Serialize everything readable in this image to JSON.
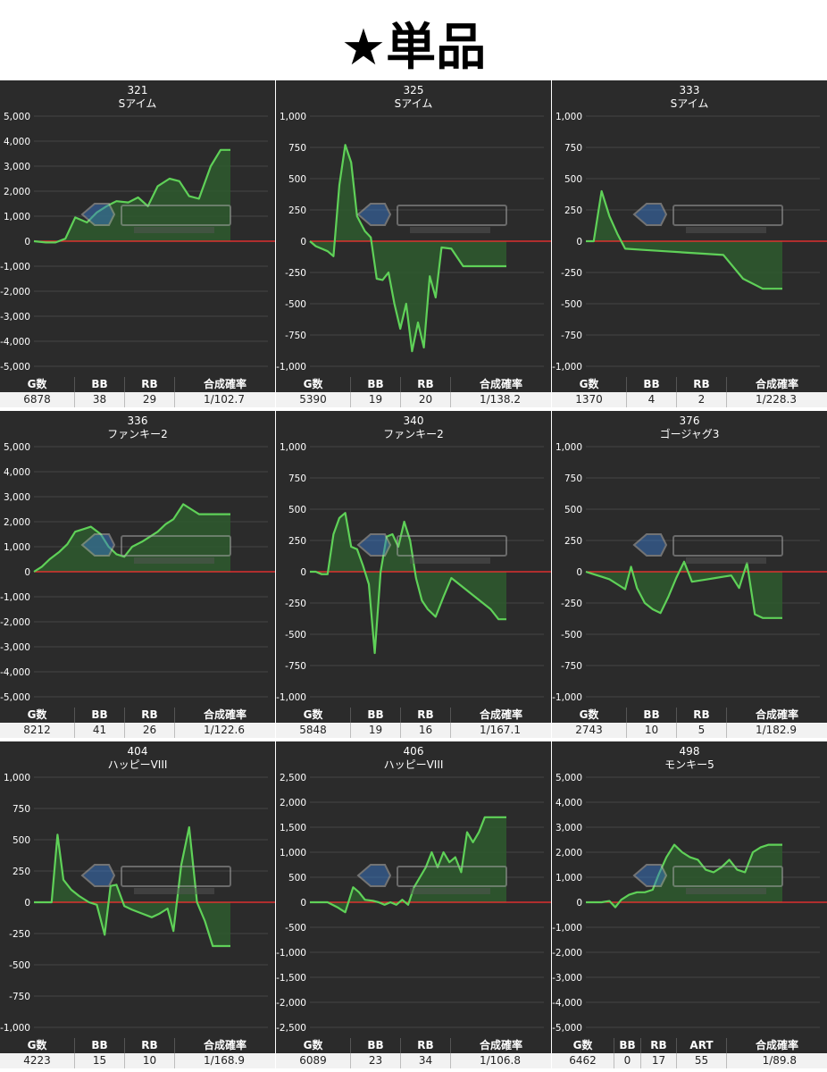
{
  "page_title": "★単品",
  "colors": {
    "panel_bg": "#2b2b2b",
    "line": "#5fd158",
    "fill": "#2e5a2e",
    "zero_line": "#ff3030",
    "grid": "#444444"
  },
  "chart_data": [
    {
      "type": "area",
      "title": "321",
      "subtitle": "Sアイム",
      "ylim": [
        -5000,
        5000
      ],
      "yticks": [
        5000,
        4000,
        3000,
        2000,
        1000,
        0,
        -1000,
        -2000,
        -3000,
        -4000,
        -5000
      ],
      "yticklabels": [
        "5,000",
        "4,000",
        "3,000",
        "2,000",
        "1,000",
        "0",
        "-1,000",
        "-2,000",
        "-3,000",
        "-4,000",
        "-5,000"
      ],
      "x": [
        0,
        6,
        11,
        16,
        21,
        27,
        32,
        37,
        42,
        48,
        53,
        58,
        63,
        69,
        74,
        79,
        84,
        90,
        95,
        100
      ],
      "y": [
        0,
        -50,
        -50,
        100,
        950,
        750,
        1150,
        1400,
        1600,
        1550,
        1750,
        1400,
        2200,
        2500,
        2400,
        1800,
        1700,
        3000,
        3650,
        3650
      ],
      "stats": {
        "headers": [
          "G数",
          "BB",
          "RB",
          "合成確率"
        ],
        "values": [
          "6878",
          "38",
          "29",
          "1/102.7"
        ]
      }
    },
    {
      "type": "area",
      "title": "325",
      "subtitle": "Sアイム",
      "ylim": [
        -1000,
        1000
      ],
      "yticks": [
        1000,
        750,
        500,
        250,
        0,
        -250,
        -500,
        -750,
        -1000
      ],
      "yticklabels": [
        "1,000",
        "750",
        "500",
        "250",
        "0",
        "-250",
        "-500",
        "-750",
        "-1,000"
      ],
      "x": [
        0,
        3,
        6,
        9,
        12,
        15,
        18,
        21,
        24,
        28,
        31,
        34,
        37,
        40,
        43,
        46,
        49,
        52,
        55,
        58,
        61,
        64,
        67,
        72,
        78,
        86,
        100
      ],
      "y": [
        0,
        -40,
        -60,
        -80,
        -120,
        450,
        770,
        630,
        200,
        80,
        30,
        -300,
        -310,
        -250,
        -500,
        -700,
        -500,
        -880,
        -650,
        -850,
        -280,
        -450,
        -50,
        -60,
        -200,
        -200,
        -200
      ],
      "stats": {
        "headers": [
          "G数",
          "BB",
          "RB",
          "合成確率"
        ],
        "values": [
          "5390",
          "19",
          "20",
          "1/138.2"
        ]
      }
    },
    {
      "type": "area",
      "title": "333",
      "subtitle": "Sアイム",
      "ylim": [
        -1000,
        1000
      ],
      "yticks": [
        1000,
        750,
        500,
        250,
        0,
        -250,
        -500,
        -750,
        -1000
      ],
      "yticklabels": [
        "1,000",
        "750",
        "500",
        "250",
        "0",
        "-250",
        "-500",
        "-750",
        "-1,000"
      ],
      "x": [
        0,
        4,
        8,
        12,
        16,
        20,
        30,
        40,
        50,
        60,
        70,
        80,
        90,
        100
      ],
      "y": [
        0,
        0,
        400,
        200,
        60,
        -60,
        -70,
        -80,
        -90,
        -100,
        -110,
        -300,
        -380,
        -380
      ],
      "stats": {
        "headers": [
          "G数",
          "BB",
          "RB",
          "合成確率"
        ],
        "values": [
          "1370",
          "4",
          "2",
          "1/228.3"
        ]
      }
    },
    {
      "type": "area",
      "title": "336",
      "subtitle": "ファンキー2",
      "ylim": [
        -5000,
        5000
      ],
      "yticks": [
        5000,
        4000,
        3000,
        2000,
        1000,
        0,
        -1000,
        -2000,
        -3000,
        -4000,
        -5000
      ],
      "yticklabels": [
        "5,000",
        "4,000",
        "3,000",
        "2,000",
        "1,000",
        "0",
        "-1,000",
        "-2,000",
        "-3,000",
        "-4,000",
        "-5,000"
      ],
      "x": [
        0,
        4,
        8,
        13,
        17,
        21,
        25,
        29,
        34,
        38,
        42,
        46,
        50,
        55,
        59,
        63,
        67,
        71,
        76,
        80,
        84,
        88,
        92,
        96,
        100
      ],
      "y": [
        0,
        200,
        500,
        800,
        1100,
        1600,
        1700,
        1800,
        1500,
        1000,
        700,
        600,
        1000,
        1200,
        1400,
        1600,
        1900,
        2100,
        2700,
        2500,
        2300,
        2300,
        2300,
        2300,
        2300
      ],
      "stats": {
        "headers": [
          "G数",
          "BB",
          "RB",
          "合成確率"
        ],
        "values": [
          "8212",
          "41",
          "26",
          "1/122.6"
        ]
      }
    },
    {
      "type": "area",
      "title": "340",
      "subtitle": "ファンキー2",
      "ylim": [
        -1000,
        1000
      ],
      "yticks": [
        1000,
        750,
        500,
        250,
        0,
        -250,
        -500,
        -750,
        -1000
      ],
      "yticklabels": [
        "1,000",
        "750",
        "500",
        "250",
        "0",
        "-250",
        "-500",
        "-750",
        "-1,000"
      ],
      "x": [
        0,
        3,
        6,
        9,
        12,
        15,
        18,
        21,
        24,
        27,
        30,
        33,
        36,
        39,
        42,
        45,
        48,
        51,
        54,
        57,
        60,
        64,
        68,
        72,
        76,
        80,
        84,
        88,
        92,
        96,
        100
      ],
      "y": [
        0,
        0,
        -20,
        -20,
        300,
        430,
        470,
        200,
        180,
        50,
        -100,
        -650,
        0,
        280,
        300,
        200,
        400,
        250,
        -50,
        -230,
        -300,
        -360,
        -200,
        -50,
        -100,
        -150,
        -200,
        -250,
        -300,
        -380,
        -380
      ],
      "stats": {
        "headers": [
          "G数",
          "BB",
          "RB",
          "合成確率"
        ],
        "values": [
          "5848",
          "19",
          "16",
          "1/167.1"
        ]
      }
    },
    {
      "type": "area",
      "title": "376",
      "subtitle": "ゴージャグ3",
      "ylim": [
        -1000,
        1000
      ],
      "yticks": [
        1000,
        750,
        500,
        250,
        0,
        -250,
        -500,
        -750,
        -1000
      ],
      "yticklabels": [
        "1,000",
        "750",
        "500",
        "250",
        "0",
        "-250",
        "-500",
        "-750",
        "-1,000"
      ],
      "x": [
        0,
        4,
        8,
        12,
        16,
        20,
        23,
        26,
        30,
        34,
        38,
        42,
        46,
        50,
        54,
        58,
        62,
        66,
        70,
        74,
        78,
        82,
        86,
        90,
        95,
        100
      ],
      "y": [
        0,
        -20,
        -40,
        -60,
        -100,
        -140,
        40,
        -130,
        -250,
        -300,
        -330,
        -200,
        -50,
        80,
        -80,
        -70,
        -60,
        -50,
        -40,
        -30,
        -130,
        70,
        -340,
        -370,
        -370,
        -370
      ],
      "stats": {
        "headers": [
          "G数",
          "BB",
          "RB",
          "合成確率"
        ],
        "values": [
          "2743",
          "10",
          "5",
          "1/182.9"
        ]
      }
    },
    {
      "type": "area",
      "title": "404",
      "subtitle": "ハッピーVIII",
      "ylim": [
        -1000,
        1000
      ],
      "yticks": [
        1000,
        750,
        500,
        250,
        0,
        -250,
        -500,
        -750,
        -1000
      ],
      "yticklabels": [
        "1,000",
        "750",
        "500",
        "250",
        "0",
        "-250",
        "-500",
        "-750",
        "-1,000"
      ],
      "x": [
        0,
        5,
        9,
        12,
        15,
        19,
        23,
        28,
        32,
        36,
        39,
        42,
        46,
        50,
        55,
        60,
        64,
        68,
        71,
        75,
        79,
        83,
        87,
        91,
        95,
        100
      ],
      "y": [
        0,
        0,
        0,
        540,
        180,
        100,
        50,
        0,
        -20,
        -260,
        130,
        140,
        -30,
        -60,
        -90,
        -120,
        -90,
        -50,
        -230,
        300,
        600,
        0,
        -150,
        -350,
        -350,
        -350
      ],
      "stats": {
        "headers": [
          "G数",
          "BB",
          "RB",
          "合成確率"
        ],
        "values": [
          "4223",
          "15",
          "10",
          "1/168.9"
        ]
      }
    },
    {
      "type": "area",
      "title": "406",
      "subtitle": "ハッピーVIII",
      "ylim": [
        -2500,
        2500
      ],
      "yticks": [
        2500,
        2000,
        1500,
        1000,
        500,
        0,
        -500,
        -1000,
        -1500,
        -2000,
        -2500
      ],
      "yticklabels": [
        "2,500",
        "2,000",
        "1,500",
        "1,000",
        "500",
        "0",
        "-500",
        "-1,000",
        "-1,500",
        "-2,000",
        "-2,500"
      ],
      "x": [
        0,
        5,
        9,
        14,
        18,
        22,
        25,
        28,
        32,
        35,
        38,
        41,
        44,
        47,
        50,
        53,
        56,
        59,
        62,
        65,
        68,
        71,
        74,
        77,
        80,
        83,
        86,
        89,
        92,
        96,
        100
      ],
      "y": [
        0,
        0,
        0,
        -100,
        -200,
        300,
        200,
        50,
        30,
        0,
        -50,
        0,
        -50,
        50,
        -50,
        300,
        500,
        700,
        1000,
        700,
        1000,
        800,
        900,
        600,
        1400,
        1200,
        1400,
        1700,
        1700,
        1700,
        1700
      ],
      "stats": {
        "headers": [
          "G数",
          "BB",
          "RB",
          "合成確率"
        ],
        "values": [
          "6089",
          "23",
          "34",
          "1/106.8"
        ]
      }
    },
    {
      "type": "area",
      "title": "498",
      "subtitle": "モンキー5",
      "ylim": [
        -5000,
        5000
      ],
      "yticks": [
        5000,
        4000,
        3000,
        2000,
        1000,
        0,
        -1000,
        -2000,
        -3000,
        -4000,
        -5000
      ],
      "yticklabels": [
        "5,000",
        "4,000",
        "3,000",
        "2,000",
        "1,000",
        "0",
        "-1,000",
        "-2,000",
        "-3,000",
        "-4,000",
        "-5,000"
      ],
      "x": [
        0,
        4,
        8,
        12,
        15,
        18,
        22,
        26,
        30,
        34,
        37,
        41,
        45,
        49,
        53,
        57,
        61,
        65,
        69,
        73,
        77,
        81,
        85,
        89,
        93,
        97,
        100
      ],
      "y": [
        0,
        0,
        0,
        50,
        -200,
        100,
        300,
        400,
        400,
        500,
        1100,
        1800,
        2300,
        2000,
        1800,
        1700,
        1300,
        1200,
        1400,
        1700,
        1300,
        1200,
        2000,
        2200,
        2300,
        2300,
        2300
      ],
      "stats": {
        "headers": [
          "G数",
          "BB",
          "RB",
          "ART",
          "合成確率"
        ],
        "values": [
          "6462",
          "0",
          "17",
          "55",
          "1/89.8"
        ]
      }
    }
  ]
}
